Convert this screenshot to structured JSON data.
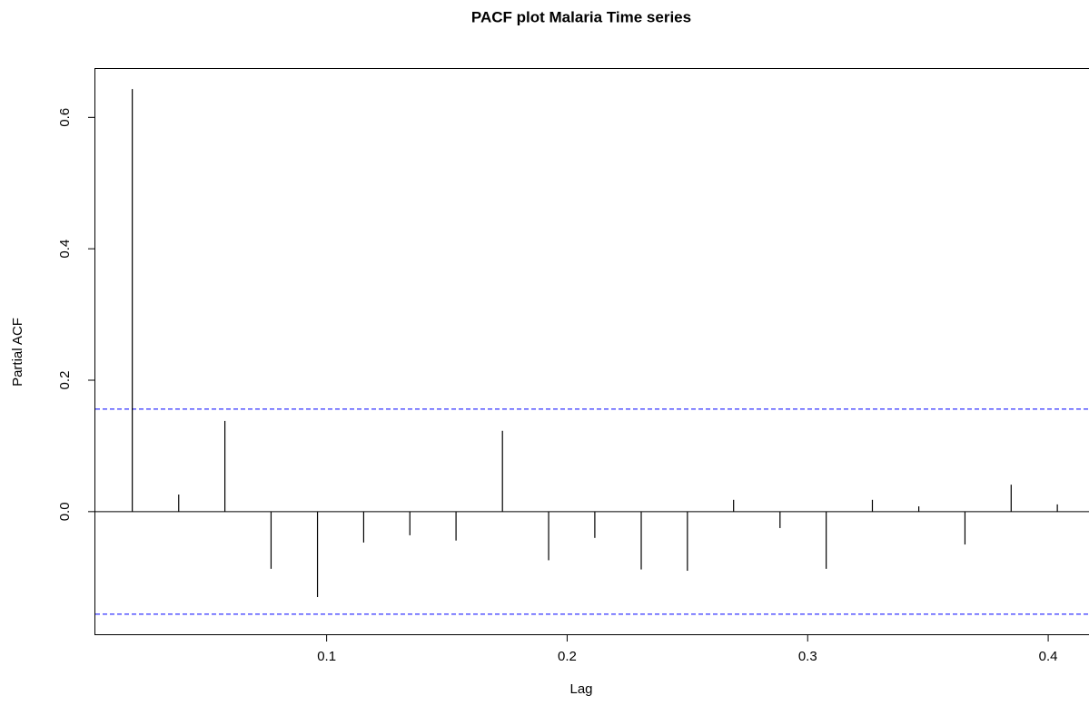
{
  "chart_data": {
    "type": "pacf",
    "title": "PACF plot Malaria Time series",
    "x_label": "Lag",
    "y_label": "Partial ACF",
    "x": [
      0.0192,
      0.0385,
      0.0577,
      0.0769,
      0.0962,
      0.1154,
      0.1346,
      0.1538,
      0.1731,
      0.1923,
      0.2115,
      0.2308,
      0.25,
      0.2692,
      0.2885,
      0.3077,
      0.3269,
      0.3462,
      0.3654,
      0.3846,
      0.4038
    ],
    "values": [
      0.643,
      0.026,
      0.138,
      -0.087,
      -0.13,
      -0.047,
      -0.036,
      -0.044,
      0.123,
      -0.074,
      -0.04,
      -0.088,
      -0.09,
      0.018,
      -0.025,
      -0.087,
      0.018,
      0.008,
      -0.05,
      0.041,
      0.011
    ],
    "color": "#000000",
    "ci_lines": [
      0.156,
      -0.156
    ],
    "ci_color": "#0000ff",
    "xlim": [
      0.00385,
      0.41923
    ],
    "xticks": [
      0.1,
      0.2,
      0.3,
      0.4
    ],
    "ylim": [
      -0.188,
      0.675
    ],
    "yticks": [
      {
        "value": 0,
        "label": "0.0"
      },
      0.2,
      0.4,
      0.6
    ]
  }
}
